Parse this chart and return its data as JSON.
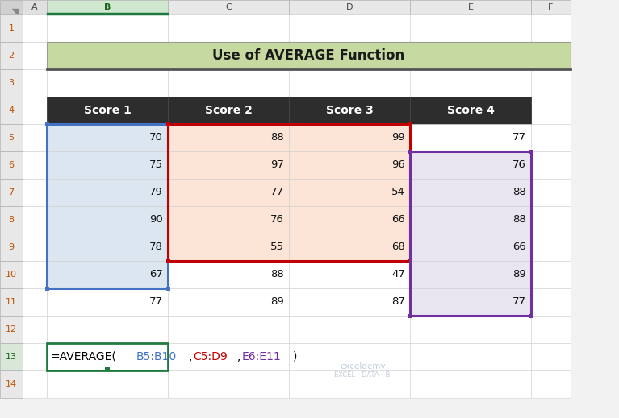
{
  "title": "Use of AVERAGE Function",
  "title_bg": "#c6d9a0",
  "title_border": "#5a5a5a",
  "headers": [
    "Score 1",
    "Score 2",
    "Score 3",
    "Score 4"
  ],
  "header_bg": "#2d2d2d",
  "header_text": "#ffffff",
  "col1": [
    70,
    75,
    79,
    90,
    78,
    67,
    77
  ],
  "col2": [
    88,
    97,
    77,
    76,
    55,
    88,
    89
  ],
  "col3": [
    99,
    96,
    54,
    66,
    68,
    47,
    87
  ],
  "col4": [
    77,
    76,
    88,
    88,
    66,
    89,
    77
  ],
  "bg_color": "#f2f2f2",
  "cell_bg_white": "#ffffff",
  "cell_bg_blue": "#dce6f1",
  "cell_bg_pink": "#fce4d6",
  "cell_bg_purple": "#e8e4f0",
  "border_blue": "#4472c4",
  "border_red": "#c00000",
  "border_purple": "#7030a0",
  "formula_color_b": "#4472c4",
  "formula_color_cd": "#c00000",
  "formula_color_e": "#7030a0",
  "formula_black": "#000000",
  "formula_green_box": "#1f7a3f",
  "col_letters": [
    "A",
    "B",
    "C",
    "D",
    "E",
    "F"
  ],
  "row_header_bg": "#e8e8e8",
  "row_header_text": "#c05000",
  "col_header_bg": "#e8e8e8",
  "col_B_selected_bg": "#c8d8ee",
  "watermark_color": "#b8c4d4",
  "col_header_B_selected": "#d0e8d0"
}
